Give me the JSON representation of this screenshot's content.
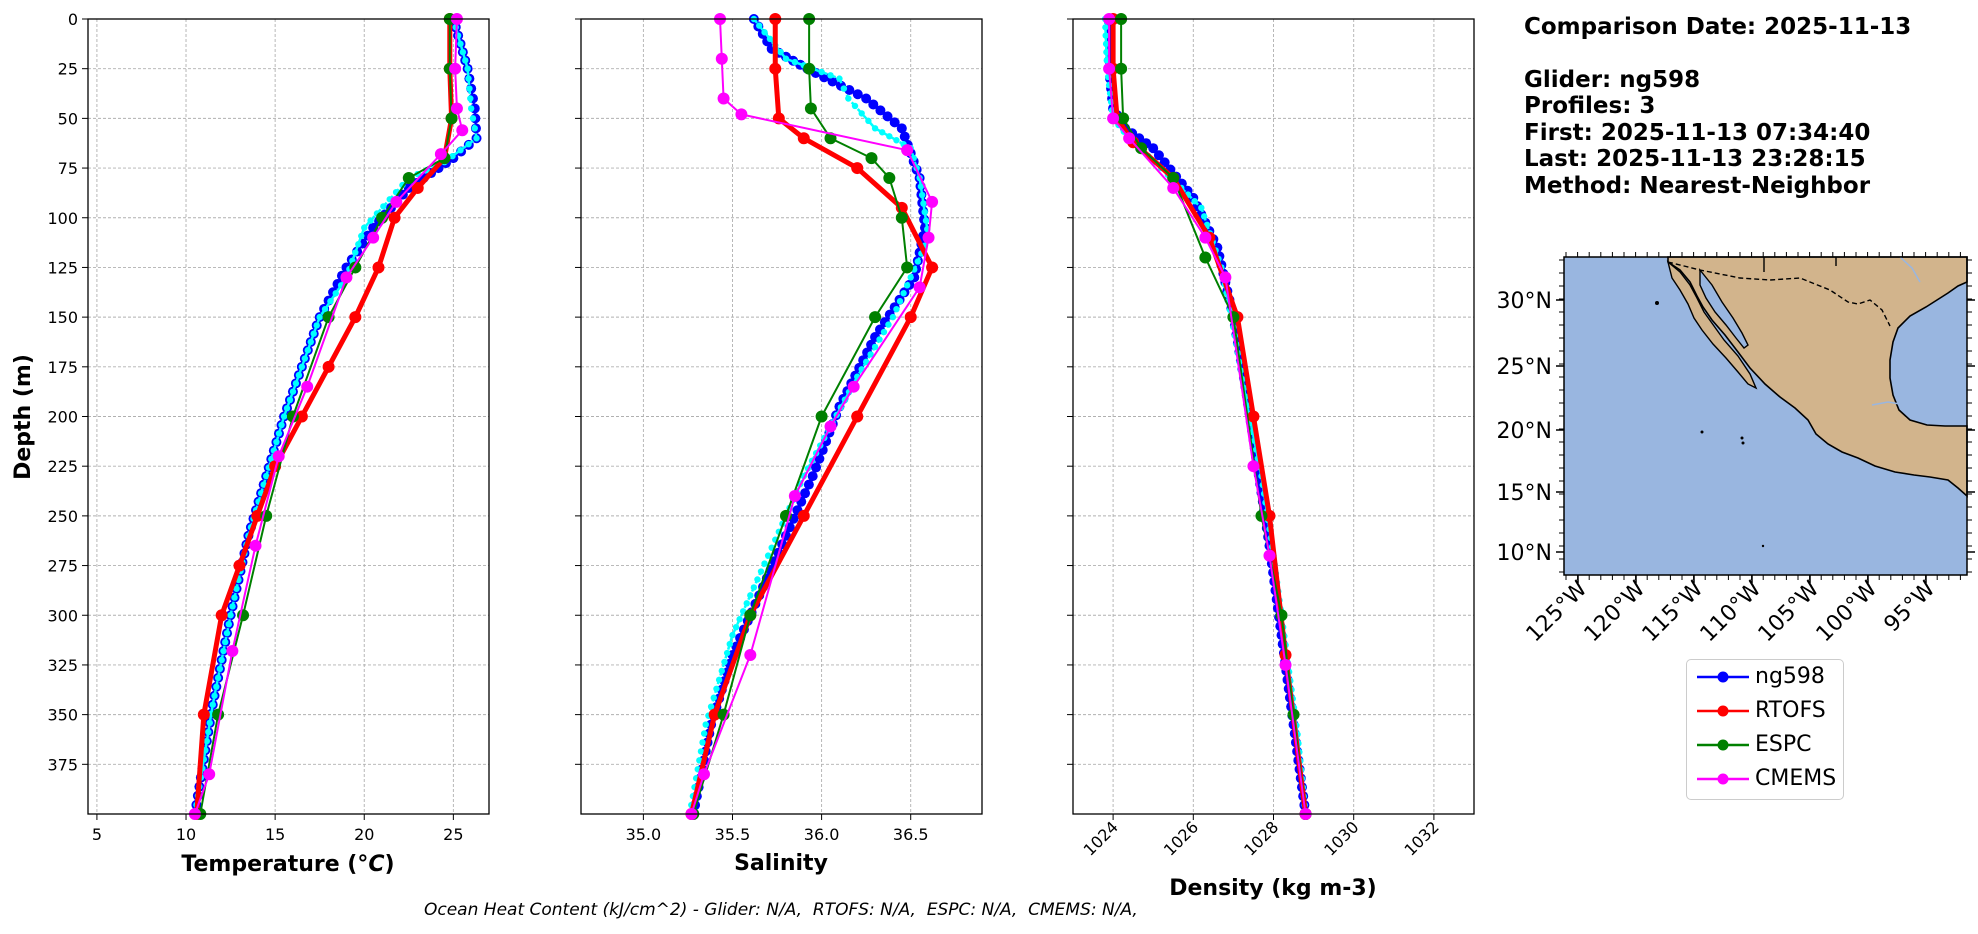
{
  "info": {
    "comparison_date": "Comparison Date: 2025-11-13",
    "glider": "Glider: ng598",
    "profiles": "Profiles: 3",
    "first": "First: 2025-11-13 07:34:40",
    "last": "Last: 2025-11-13 23:28:15",
    "method": "Method: Nearest-Neighbor"
  },
  "footnote": "Ocean Heat Content (kJ/cm^2) - Glider: N/A,  RTOFS: N/A,  ESPC: N/A,  CMEMS: N/A,",
  "colors": {
    "ng598": "#0000ff",
    "ng598_alt": "#00ffff",
    "RTOFS": "#ff0000",
    "ESPC": "#008000",
    "CMEMS": "#ff00ff",
    "ocean": "#99b6e0",
    "land": "#d2b48c"
  },
  "legend": [
    {
      "name": "ng598",
      "color": "#0000ff"
    },
    {
      "name": "RTOFS",
      "color": "#ff0000"
    },
    {
      "name": "ESPC",
      "color": "#008000"
    },
    {
      "name": "CMEMS",
      "color": "#ff00ff"
    }
  ],
  "chart_data": [
    {
      "type": "line",
      "xlabel": "Temperature ($^oC$)",
      "ylabel": "Depth (m)",
      "xlim": [
        4.5,
        27
      ],
      "ylim": [
        400,
        0
      ],
      "xticks": [
        5,
        10,
        15,
        20,
        25
      ],
      "yticks": [
        0,
        25,
        50,
        75,
        100,
        125,
        150,
        175,
        200,
        225,
        250,
        275,
        300,
        325,
        350,
        375
      ],
      "grid": true,
      "series": [
        {
          "name": "ng598",
          "x": [
            25.0,
            25.8,
            26.2,
            26.3,
            25.0,
            22.5,
            20.5,
            19.0,
            17.5,
            16.5,
            15.5,
            14.5,
            13.5,
            12.5,
            11.5,
            10.5
          ],
          "y": [
            0,
            25,
            45,
            60,
            70,
            85,
            105,
            125,
            150,
            175,
            200,
            230,
            260,
            300,
            345,
            400
          ]
        },
        {
          "name": "ng598",
          "x": [
            25.0,
            25.8,
            26.0,
            26.3,
            24.5,
            22.5,
            20.0,
            19.0,
            17.5,
            16.5,
            15.5,
            14.5,
            13.5,
            12.5,
            11.5,
            10.5
          ],
          "y": [
            0,
            25,
            45,
            60,
            72,
            80,
            105,
            130,
            150,
            175,
            200,
            230,
            260,
            300,
            345,
            400
          ]
        },
        {
          "name": "RTOFS",
          "x": [
            24.8,
            24.8,
            24.9,
            24.5,
            23.0,
            21.7,
            20.8,
            19.5,
            18.0,
            16.5,
            15.0,
            14.0,
            13.0,
            12.0,
            11.0,
            10.6
          ],
          "y": [
            0,
            25,
            50,
            70,
            85,
            100,
            125,
            150,
            175,
            200,
            225,
            250,
            275,
            300,
            350,
            400
          ]
        },
        {
          "name": "ESPC",
          "x": [
            24.8,
            24.8,
            24.9,
            24.5,
            22.5,
            21.0,
            19.5,
            18.0,
            16.0,
            14.5,
            13.2,
            11.8,
            10.8
          ],
          "y": [
            0,
            25,
            50,
            70,
            80,
            100,
            125,
            150,
            200,
            250,
            300,
            350,
            400
          ]
        },
        {
          "name": "CMEMS",
          "x": [
            25.2,
            25.1,
            25.2,
            25.5,
            24.3,
            21.8,
            20.5,
            19.0,
            16.8,
            15.2,
            13.9,
            12.6,
            11.3,
            10.5
          ],
          "y": [
            0,
            25,
            45,
            56,
            68,
            92,
            110,
            130,
            185,
            220,
            265,
            318,
            380,
            400
          ]
        }
      ]
    },
    {
      "type": "line",
      "xlabel": "Salinity",
      "xlim": [
        34.65,
        36.9
      ],
      "ylim": [
        400,
        0
      ],
      "xticks": [
        35.0,
        35.5,
        36.0,
        36.5
      ],
      "grid": true,
      "series": [
        {
          "name": "ng598",
          "x": [
            35.62,
            35.72,
            35.92,
            36.25,
            36.45,
            36.55,
            36.58,
            36.52,
            36.3,
            36.1,
            35.95,
            35.8,
            35.65,
            35.5,
            35.38,
            35.28
          ],
          "y": [
            0,
            15,
            25,
            40,
            55,
            80,
            105,
            130,
            160,
            195,
            230,
            260,
            290,
            320,
            355,
            400
          ]
        },
        {
          "name": "ng598",
          "x": [
            35.62,
            35.8,
            36.1,
            36.15,
            36.3,
            36.5,
            36.55,
            36.6,
            36.4,
            36.2,
            35.9,
            35.7,
            35.5,
            35.35,
            35.26
          ],
          "y": [
            0,
            20,
            30,
            40,
            55,
            65,
            80,
            110,
            150,
            180,
            230,
            270,
            310,
            355,
            400
          ]
        },
        {
          "name": "RTOFS",
          "x": [
            35.74,
            35.74,
            35.76,
            35.9,
            36.2,
            36.45,
            36.62,
            36.5,
            36.2,
            35.9,
            35.6,
            35.4,
            35.27
          ],
          "y": [
            0,
            25,
            50,
            60,
            75,
            95,
            125,
            150,
            200,
            250,
            300,
            350,
            400
          ]
        },
        {
          "name": "ESPC",
          "x": [
            35.93,
            35.93,
            35.94,
            36.05,
            36.28,
            36.38,
            36.45,
            36.48,
            36.3,
            36.0,
            35.8,
            35.6,
            35.45,
            35.28
          ],
          "y": [
            0,
            25,
            45,
            60,
            70,
            80,
            100,
            125,
            150,
            200,
            250,
            300,
            350,
            400
          ]
        },
        {
          "name": "CMEMS",
          "x": [
            35.43,
            35.44,
            35.45,
            35.55,
            36.48,
            36.62,
            36.6,
            36.55,
            36.18,
            36.05,
            35.85,
            35.6,
            35.34,
            35.27
          ],
          "y": [
            0,
            20,
            40,
            48,
            66,
            92,
            110,
            135,
            185,
            205,
            240,
            320,
            380,
            400
          ]
        }
      ]
    },
    {
      "type": "line",
      "xlabel": "Density (kg m-3)",
      "xlim": [
        1023.0,
        1033.0
      ],
      "ylim": [
        400,
        0
      ],
      "xticks": [
        1024,
        1026,
        1028,
        1030,
        1032
      ],
      "grid": true,
      "series": [
        {
          "name": "ng598",
          "x": [
            1023.9,
            1023.9,
            1024.0,
            1024.3,
            1025.0,
            1026.0,
            1026.6,
            1027.0,
            1027.3,
            1027.6,
            1027.9,
            1028.2,
            1028.5,
            1028.8
          ],
          "y": [
            0,
            25,
            45,
            55,
            65,
            90,
            115,
            150,
            185,
            225,
            265,
            310,
            355,
            400
          ]
        },
        {
          "name": "ng598",
          "x": [
            1023.8,
            1023.85,
            1024.0,
            1024.4,
            1025.2,
            1026.2,
            1026.7,
            1027.0,
            1027.3,
            1027.7,
            1028.0,
            1028.3,
            1028.6,
            1028.8
          ],
          "y": [
            0,
            25,
            50,
            60,
            75,
            95,
            125,
            155,
            190,
            230,
            270,
            315,
            360,
            400
          ]
        },
        {
          "name": "RTOFS",
          "x": [
            1024.0,
            1024.0,
            1024.1,
            1024.5,
            1025.5,
            1026.4,
            1027.1,
            1027.5,
            1027.9,
            1028.3,
            1028.8
          ],
          "y": [
            0,
            25,
            50,
            62,
            80,
            110,
            150,
            200,
            250,
            320,
            400
          ]
        },
        {
          "name": "ESPC",
          "x": [
            1024.2,
            1024.2,
            1024.25,
            1024.7,
            1025.5,
            1026.3,
            1027.0,
            1027.7,
            1028.2,
            1028.5,
            1028.8
          ],
          "y": [
            0,
            25,
            50,
            65,
            80,
            120,
            150,
            250,
            300,
            350,
            400
          ]
        },
        {
          "name": "CMEMS",
          "x": [
            1023.9,
            1023.9,
            1024.0,
            1024.4,
            1025.5,
            1026.3,
            1026.8,
            1027.5,
            1027.9,
            1028.3,
            1028.8
          ],
          "y": [
            0,
            25,
            50,
            60,
            85,
            110,
            130,
            225,
            270,
            325,
            400
          ]
        }
      ]
    },
    {
      "type": "map",
      "lon_ticks": [
        "125°W",
        "120°W",
        "115°W",
        "110°W",
        "105°W",
        "100°W",
        "95°W"
      ],
      "lat_ticks": [
        "30°N",
        "25°N",
        "20°N",
        "15°N",
        "10°N"
      ]
    }
  ]
}
